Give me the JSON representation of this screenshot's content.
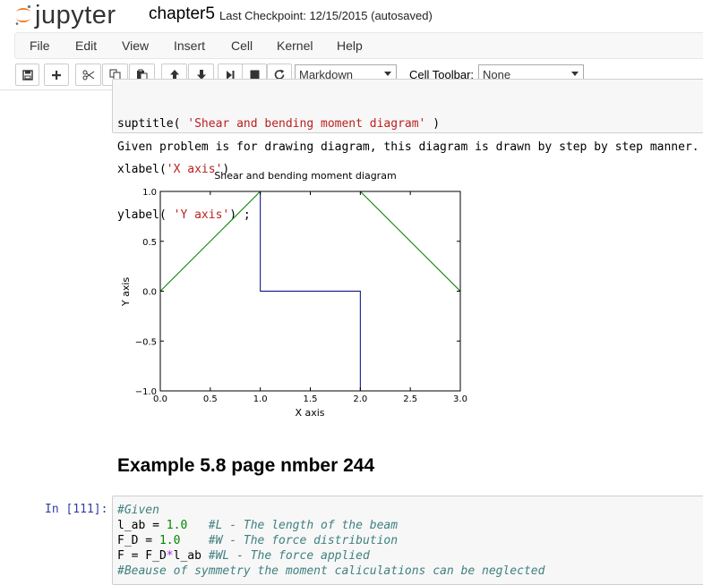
{
  "header": {
    "logo_text": "jupyter",
    "notebook_name": "chapter5",
    "checkpoint": "Last Checkpoint: 12/15/2015 (autosaved)"
  },
  "menu": [
    "File",
    "Edit",
    "View",
    "Insert",
    "Cell",
    "Kernel",
    "Help"
  ],
  "toolbar": {
    "buttons": [
      "save-icon",
      "plus-icon",
      "cut-icon",
      "copy-icon",
      "paste-icon",
      "arrow-up-icon",
      "arrow-down-icon",
      "step-forward-icon",
      "stop-icon",
      "restart-icon"
    ],
    "cell_type": "Markdown",
    "cell_toolbar_label": "Cell Toolbar:",
    "cell_toolbar_value": "None"
  },
  "cell_top": {
    "lines": [
      {
        "pre": "suptitle( ",
        "str": "'Shear and bending moment diagram'",
        "post": " )"
      },
      {
        "pre": "xlabel(",
        "str": "'X axis'",
        "post": ")"
      },
      {
        "pre": "ylabel( ",
        "str": "'Y axis'",
        "post": ") ;"
      }
    ]
  },
  "output_text": "Given problem is for drawing diagram, this diagram is drawn by step by step manner.",
  "chart_data": {
    "type": "line",
    "title": "Shear and bending moment diagram",
    "xlabel": "X axis",
    "ylabel": "Y axis",
    "xlim": [
      0.0,
      3.0
    ],
    "ylim": [
      -1.0,
      1.0
    ],
    "xticks": [
      "0.0",
      "0.5",
      "1.0",
      "1.5",
      "2.0",
      "2.5",
      "3.0"
    ],
    "yticks": [
      "1.0",
      "0.5",
      "0.0",
      "−0.5",
      "−1.0"
    ],
    "series": [
      {
        "color": "#00007f",
        "x": [
          1,
          1,
          2,
          2
        ],
        "y": [
          1,
          0,
          0,
          -1
        ]
      },
      {
        "color": "#007f00",
        "x": [
          0,
          1
        ],
        "y": [
          0,
          1
        ]
      },
      {
        "color": "#007f00",
        "x": [
          2,
          3
        ],
        "y": [
          1,
          0
        ]
      }
    ]
  },
  "example_heading": "Example 5.8 page nmber 244",
  "cell_bottom": {
    "prompt": "In [111]:",
    "lines": [
      {
        "parts": [
          {
            "t": "#Given",
            "c": "cmt"
          }
        ]
      },
      {
        "parts": [
          {
            "t": "l_ab = ",
            "c": ""
          },
          {
            "t": "1.0",
            "c": "num"
          },
          {
            "t": "   ",
            "c": ""
          },
          {
            "t": "#L - The length of the beam",
            "c": "cmt"
          }
        ]
      },
      {
        "parts": [
          {
            "t": "F_D = ",
            "c": ""
          },
          {
            "t": "1.0",
            "c": "num"
          },
          {
            "t": "    ",
            "c": ""
          },
          {
            "t": "#W - The force distribution",
            "c": "cmt"
          }
        ]
      },
      {
        "parts": [
          {
            "t": "F = F_D",
            "c": ""
          },
          {
            "t": "*",
            "c": "op"
          },
          {
            "t": "l_ab ",
            "c": ""
          },
          {
            "t": "#WL - The force applied",
            "c": "cmt"
          }
        ]
      },
      {
        "parts": [
          {
            "t": "#Beause of symmetry the moment caliculations can be neglected",
            "c": "cmt"
          }
        ]
      }
    ]
  }
}
